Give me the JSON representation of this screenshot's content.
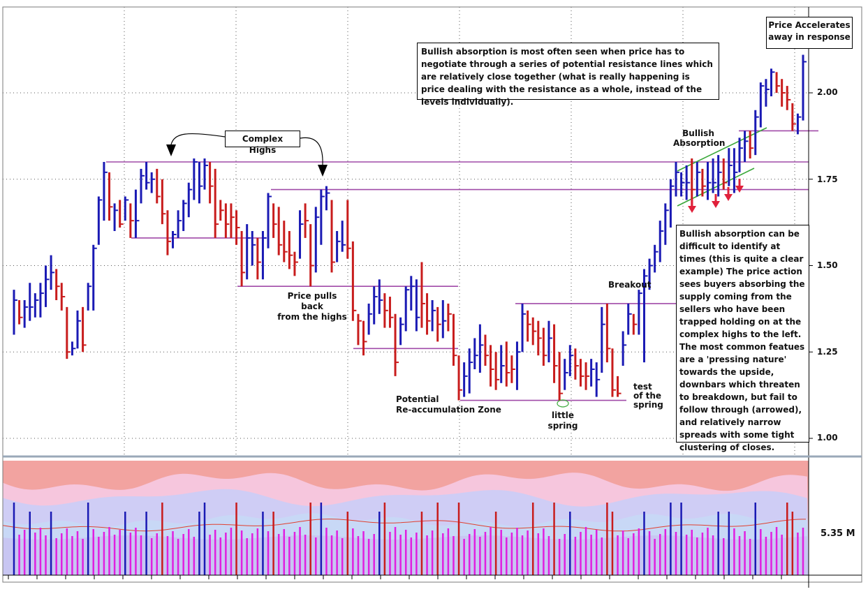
{
  "chart_data": [
    {
      "type": "bar",
      "subtype": "ohlc-price",
      "ylim": [
        0.97,
        2.25
      ],
      "y_ticks": [
        "2.00",
        "1.75",
        "1.50",
        "1.25",
        "1.00"
      ],
      "bars": [
        {
          "h": 1.43,
          "l": 1.3,
          "c": 1.4,
          "d": "u"
        },
        {
          "h": 1.4,
          "l": 1.33,
          "c": 1.35,
          "d": "d"
        },
        {
          "h": 1.4,
          "l": 1.32,
          "c": 1.38,
          "d": "u"
        },
        {
          "h": 1.45,
          "l": 1.34,
          "c": 1.38,
          "d": "u"
        },
        {
          "h": 1.42,
          "l": 1.35,
          "c": 1.4,
          "d": "u"
        },
        {
          "h": 1.45,
          "l": 1.35,
          "c": 1.42,
          "d": "u"
        },
        {
          "h": 1.5,
          "l": 1.38,
          "c": 1.46,
          "d": "u"
        },
        {
          "h": 1.53,
          "l": 1.43,
          "c": 1.48,
          "d": "u"
        },
        {
          "h": 1.49,
          "l": 1.4,
          "c": 1.44,
          "d": "d"
        },
        {
          "h": 1.45,
          "l": 1.37,
          "c": 1.41,
          "d": "d"
        },
        {
          "h": 1.38,
          "l": 1.23,
          "c": 1.25,
          "d": "d"
        },
        {
          "h": 1.28,
          "l": 1.24,
          "c": 1.26,
          "d": "u"
        },
        {
          "h": 1.37,
          "l": 1.26,
          "c": 1.34,
          "d": "u"
        },
        {
          "h": 1.38,
          "l": 1.25,
          "c": 1.27,
          "d": "d"
        },
        {
          "h": 1.45,
          "l": 1.37,
          "c": 1.44,
          "d": "u"
        },
        {
          "h": 1.56,
          "l": 1.37,
          "c": 1.55,
          "d": "u"
        },
        {
          "h": 1.7,
          "l": 1.56,
          "c": 1.69,
          "d": "u"
        },
        {
          "h": 1.8,
          "l": 1.63,
          "c": 1.77,
          "d": "u"
        },
        {
          "h": 1.77,
          "l": 1.63,
          "c": 1.67,
          "d": "d"
        },
        {
          "h": 1.68,
          "l": 1.6,
          "c": 1.66,
          "d": "u"
        },
        {
          "h": 1.69,
          "l": 1.61,
          "c": 1.62,
          "d": "d"
        },
        {
          "h": 1.7,
          "l": 1.63,
          "c": 1.69,
          "d": "u"
        },
        {
          "h": 1.68,
          "l": 1.58,
          "c": 1.63,
          "d": "d"
        },
        {
          "h": 1.72,
          "l": 1.58,
          "c": 1.63,
          "d": "u"
        },
        {
          "h": 1.78,
          "l": 1.68,
          "c": 1.76,
          "d": "u"
        },
        {
          "h": 1.8,
          "l": 1.72,
          "c": 1.74,
          "d": "u"
        },
        {
          "h": 1.77,
          "l": 1.71,
          "c": 1.75,
          "d": "u"
        },
        {
          "h": 1.78,
          "l": 1.68,
          "c": 1.7,
          "d": "d"
        },
        {
          "h": 1.75,
          "l": 1.62,
          "c": 1.65,
          "d": "d"
        },
        {
          "h": 1.66,
          "l": 1.53,
          "c": 1.57,
          "d": "d"
        },
        {
          "h": 1.6,
          "l": 1.55,
          "c": 1.59,
          "d": "u"
        },
        {
          "h": 1.66,
          "l": 1.58,
          "c": 1.63,
          "d": "u"
        },
        {
          "h": 1.69,
          "l": 1.6,
          "c": 1.68,
          "d": "u"
        },
        {
          "h": 1.74,
          "l": 1.64,
          "c": 1.72,
          "d": "u"
        },
        {
          "h": 1.81,
          "l": 1.69,
          "c": 1.8,
          "d": "u"
        },
        {
          "h": 1.8,
          "l": 1.68,
          "c": 1.73,
          "d": "u"
        },
        {
          "h": 1.81,
          "l": 1.72,
          "c": 1.79,
          "d": "u"
        },
        {
          "h": 1.8,
          "l": 1.68,
          "c": 1.73,
          "d": "d"
        },
        {
          "h": 1.78,
          "l": 1.58,
          "c": 1.62,
          "d": "d"
        },
        {
          "h": 1.69,
          "l": 1.63,
          "c": 1.66,
          "d": "d"
        },
        {
          "h": 1.68,
          "l": 1.58,
          "c": 1.62,
          "d": "d"
        },
        {
          "h": 1.68,
          "l": 1.58,
          "c": 1.64,
          "d": "d"
        },
        {
          "h": 1.66,
          "l": 1.56,
          "c": 1.61,
          "d": "d"
        },
        {
          "h": 1.6,
          "l": 1.44,
          "c": 1.48,
          "d": "d"
        },
        {
          "h": 1.62,
          "l": 1.46,
          "c": 1.58,
          "d": "u"
        },
        {
          "h": 1.6,
          "l": 1.5,
          "c": 1.56,
          "d": "u"
        },
        {
          "h": 1.58,
          "l": 1.46,
          "c": 1.51,
          "d": "d"
        },
        {
          "h": 1.6,
          "l": 1.46,
          "c": 1.58,
          "d": "u"
        },
        {
          "h": 1.71,
          "l": 1.55,
          "c": 1.7,
          "d": "u"
        },
        {
          "h": 1.68,
          "l": 1.58,
          "c": 1.62,
          "d": "d"
        },
        {
          "h": 1.67,
          "l": 1.53,
          "c": 1.56,
          "d": "d"
        },
        {
          "h": 1.63,
          "l": 1.51,
          "c": 1.54,
          "d": "d"
        },
        {
          "h": 1.6,
          "l": 1.49,
          "c": 1.53,
          "d": "d"
        },
        {
          "h": 1.54,
          "l": 1.47,
          "c": 1.51,
          "d": "d"
        },
        {
          "h": 1.66,
          "l": 1.52,
          "c": 1.62,
          "d": "u"
        },
        {
          "h": 1.68,
          "l": 1.58,
          "c": 1.63,
          "d": "d"
        },
        {
          "h": 1.62,
          "l": 1.44,
          "c": 1.5,
          "d": "d"
        },
        {
          "h": 1.67,
          "l": 1.48,
          "c": 1.64,
          "d": "u"
        },
        {
          "h": 1.72,
          "l": 1.56,
          "c": 1.7,
          "d": "u"
        },
        {
          "h": 1.73,
          "l": 1.66,
          "c": 1.71,
          "d": "u"
        },
        {
          "h": 1.69,
          "l": 1.48,
          "c": 1.51,
          "d": "d"
        },
        {
          "h": 1.6,
          "l": 1.51,
          "c": 1.57,
          "d": "u"
        },
        {
          "h": 1.63,
          "l": 1.54,
          "c": 1.56,
          "d": "u"
        },
        {
          "h": 1.69,
          "l": 1.52,
          "c": 1.55,
          "d": "d"
        },
        {
          "h": 1.57,
          "l": 1.34,
          "c": 1.37,
          "d": "d"
        },
        {
          "h": 1.36,
          "l": 1.27,
          "c": 1.34,
          "d": "d"
        },
        {
          "h": 1.34,
          "l": 1.24,
          "c": 1.28,
          "d": "d"
        },
        {
          "h": 1.39,
          "l": 1.3,
          "c": 1.36,
          "d": "u"
        },
        {
          "h": 1.44,
          "l": 1.33,
          "c": 1.41,
          "d": "u"
        },
        {
          "h": 1.46,
          "l": 1.36,
          "c": 1.4,
          "d": "u"
        },
        {
          "h": 1.42,
          "l": 1.32,
          "c": 1.37,
          "d": "d"
        },
        {
          "h": 1.41,
          "l": 1.32,
          "c": 1.35,
          "d": "d"
        },
        {
          "h": 1.36,
          "l": 1.18,
          "c": 1.22,
          "d": "d"
        },
        {
          "h": 1.35,
          "l": 1.27,
          "c": 1.33,
          "d": "u"
        },
        {
          "h": 1.44,
          "l": 1.31,
          "c": 1.43,
          "d": "u"
        },
        {
          "h": 1.47,
          "l": 1.37,
          "c": 1.44,
          "d": "u"
        },
        {
          "h": 1.46,
          "l": 1.31,
          "c": 1.35,
          "d": "u"
        },
        {
          "h": 1.51,
          "l": 1.32,
          "c": 1.39,
          "d": "d"
        },
        {
          "h": 1.42,
          "l": 1.3,
          "c": 1.34,
          "d": "d"
        },
        {
          "h": 1.4,
          "l": 1.31,
          "c": 1.37,
          "d": "u"
        },
        {
          "h": 1.38,
          "l": 1.28,
          "c": 1.33,
          "d": "d"
        },
        {
          "h": 1.4,
          "l": 1.29,
          "c": 1.34,
          "d": "u"
        },
        {
          "h": 1.39,
          "l": 1.31,
          "c": 1.36,
          "d": "d"
        },
        {
          "h": 1.36,
          "l": 1.21,
          "c": 1.24,
          "d": "d"
        },
        {
          "h": 1.24,
          "l": 1.11,
          "c": 1.14,
          "d": "d"
        },
        {
          "h": 1.22,
          "l": 1.12,
          "c": 1.18,
          "d": "u"
        },
        {
          "h": 1.26,
          "l": 1.13,
          "c": 1.22,
          "d": "u"
        },
        {
          "h": 1.29,
          "l": 1.2,
          "c": 1.24,
          "d": "u"
        },
        {
          "h": 1.33,
          "l": 1.19,
          "c": 1.27,
          "d": "u"
        },
        {
          "h": 1.3,
          "l": 1.21,
          "c": 1.24,
          "d": "d"
        },
        {
          "h": 1.27,
          "l": 1.15,
          "c": 1.2,
          "d": "d"
        },
        {
          "h": 1.25,
          "l": 1.14,
          "c": 1.17,
          "d": "d"
        },
        {
          "h": 1.27,
          "l": 1.16,
          "c": 1.21,
          "d": "u"
        },
        {
          "h": 1.28,
          "l": 1.15,
          "c": 1.19,
          "d": "d"
        },
        {
          "h": 1.24,
          "l": 1.16,
          "c": 1.2,
          "d": "d"
        },
        {
          "h": 1.28,
          "l": 1.14,
          "c": 1.25,
          "d": "u"
        },
        {
          "h": 1.39,
          "l": 1.25,
          "c": 1.36,
          "d": "u"
        },
        {
          "h": 1.37,
          "l": 1.28,
          "c": 1.33,
          "d": "d"
        },
        {
          "h": 1.35,
          "l": 1.27,
          "c": 1.31,
          "d": "d"
        },
        {
          "h": 1.34,
          "l": 1.24,
          "c": 1.29,
          "d": "d"
        },
        {
          "h": 1.32,
          "l": 1.21,
          "c": 1.24,
          "d": "d"
        },
        {
          "h": 1.34,
          "l": 1.22,
          "c": 1.29,
          "d": "u"
        },
        {
          "h": 1.33,
          "l": 1.16,
          "c": 1.21,
          "d": "d"
        },
        {
          "h": 1.25,
          "l": 1.11,
          "c": 1.13,
          "d": "d"
        },
        {
          "h": 1.23,
          "l": 1.14,
          "c": 1.19,
          "d": "u"
        },
        {
          "h": 1.27,
          "l": 1.18,
          "c": 1.24,
          "d": "u"
        },
        {
          "h": 1.26,
          "l": 1.17,
          "c": 1.21,
          "d": "d"
        },
        {
          "h": 1.23,
          "l": 1.15,
          "c": 1.18,
          "d": "d"
        },
        {
          "h": 1.22,
          "l": 1.14,
          "c": 1.18,
          "d": "d"
        },
        {
          "h": 1.23,
          "l": 1.15,
          "c": 1.2,
          "d": "u"
        },
        {
          "h": 1.22,
          "l": 1.12,
          "c": 1.17,
          "d": "u"
        },
        {
          "h": 1.38,
          "l": 1.19,
          "c": 1.33,
          "d": "u"
        },
        {
          "h": 1.39,
          "l": 1.22,
          "c": 1.26,
          "d": "d"
        },
        {
          "h": 1.26,
          "l": 1.12,
          "c": 1.14,
          "d": "d"
        },
        {
          "h": 1.18,
          "l": 1.12,
          "c": 1.13,
          "d": "d"
        },
        {
          "h": 1.31,
          "l": 1.21,
          "c": 1.27,
          "d": "u"
        },
        {
          "h": 1.39,
          "l": 1.3,
          "c": 1.36,
          "d": "u"
        },
        {
          "h": 1.36,
          "l": 1.3,
          "c": 1.33,
          "d": "d"
        },
        {
          "h": 1.43,
          "l": 1.3,
          "c": 1.42,
          "d": "u"
        },
        {
          "h": 1.49,
          "l": 1.22,
          "c": 1.47,
          "d": "u"
        },
        {
          "h": 1.52,
          "l": 1.43,
          "c": 1.5,
          "d": "u"
        },
        {
          "h": 1.56,
          "l": 1.48,
          "c": 1.54,
          "d": "u"
        },
        {
          "h": 1.63,
          "l": 1.51,
          "c": 1.6,
          "d": "u"
        },
        {
          "h": 1.68,
          "l": 1.56,
          "c": 1.66,
          "d": "u"
        },
        {
          "h": 1.75,
          "l": 1.61,
          "c": 1.73,
          "d": "u"
        },
        {
          "h": 1.8,
          "l": 1.7,
          "c": 1.77,
          "d": "u"
        },
        {
          "h": 1.77,
          "l": 1.7,
          "c": 1.74,
          "d": "u"
        },
        {
          "h": 1.79,
          "l": 1.69,
          "c": 1.74,
          "d": "u"
        },
        {
          "h": 1.81,
          "l": 1.67,
          "c": 1.72,
          "d": "d"
        },
        {
          "h": 1.8,
          "l": 1.7,
          "c": 1.77,
          "d": "u"
        },
        {
          "h": 1.78,
          "l": 1.7,
          "c": 1.73,
          "d": "d"
        },
        {
          "h": 1.8,
          "l": 1.69,
          "c": 1.74,
          "d": "u"
        },
        {
          "h": 1.81,
          "l": 1.71,
          "c": 1.74,
          "d": "u"
        },
        {
          "h": 1.82,
          "l": 1.7,
          "c": 1.77,
          "d": "u"
        },
        {
          "h": 1.81,
          "l": 1.72,
          "c": 1.74,
          "d": "d"
        },
        {
          "h": 1.84,
          "l": 1.73,
          "c": 1.79,
          "d": "u"
        },
        {
          "h": 1.84,
          "l": 1.71,
          "c": 1.77,
          "d": "u"
        },
        {
          "h": 1.87,
          "l": 1.77,
          "c": 1.84,
          "d": "u"
        },
        {
          "h": 1.89,
          "l": 1.8,
          "c": 1.86,
          "d": "u"
        },
        {
          "h": 1.89,
          "l": 1.81,
          "c": 1.84,
          "d": "d"
        },
        {
          "h": 1.95,
          "l": 1.82,
          "c": 1.93,
          "d": "u"
        },
        {
          "h": 2.03,
          "l": 1.9,
          "c": 2.02,
          "d": "u"
        },
        {
          "h": 2.04,
          "l": 1.96,
          "c": 2.01,
          "d": "u"
        },
        {
          "h": 2.07,
          "l": 1.99,
          "c": 2.06,
          "d": "u"
        },
        {
          "h": 2.06,
          "l": 2.0,
          "c": 2.02,
          "d": "d"
        },
        {
          "h": 2.04,
          "l": 1.96,
          "c": 2.0,
          "d": "d"
        },
        {
          "h": 2.02,
          "l": 1.95,
          "c": 1.98,
          "d": "d"
        },
        {
          "h": 1.97,
          "l": 1.89,
          "c": 1.91,
          "d": "d"
        },
        {
          "h": 1.94,
          "l": 1.88,
          "c": 1.93,
          "d": "u"
        },
        {
          "h": 2.11,
          "l": 1.92,
          "c": 2.09,
          "d": "u"
        }
      ]
    },
    {
      "type": "bar",
      "subtype": "volume",
      "value_label": "5.35 M"
    }
  ],
  "annotations": {
    "complex_highs": "Complex Highs",
    "pullback": [
      "Price pulls back",
      "from the highs"
    ],
    "reaccum": [
      "Potential",
      "Re-accumulation  Zone"
    ],
    "spring": [
      "little",
      "spring"
    ],
    "test": [
      "test",
      "of the",
      "spring"
    ],
    "breakout": "Breakout",
    "absorption": [
      "Bullish",
      "Absorption"
    ],
    "accelerates": [
      "Price Accelerates",
      "away in response"
    ],
    "info_top": "Bullish absorption is most often seen when price has to negotiate through a series of potential resistance lines which are relatively close together (what is really happening is price dealing with the resistance as a whole, instead of the levels individually).",
    "info_side": "Bullish absorption can be difficult to identify at times (this is quite a clear example) The price action sees buyers absorbing the supply coming from the sellers who have been trapped holding on at the complex highs to the left. The most common featues are a 'pressing nature' towards the upside, downbars which threaten to breakdown, but fail to follow through (arrowed), and relatively narrow spreads with some tight clustering of closes."
  },
  "colors": {
    "up": "#1a1ab4",
    "down": "#c81c1c",
    "resistance": "#a04aa8",
    "channel": "#3aa83a",
    "arrow": "#e0203a",
    "vol_band_top": "#f2a3a0",
    "vol_band_mid": "#f6c6dd",
    "vol_band_low": "#cfcdf5",
    "vol_band_base": "#c8d8f6",
    "vol_magenta": "#e020e0",
    "vol_ma": "#e04030"
  }
}
